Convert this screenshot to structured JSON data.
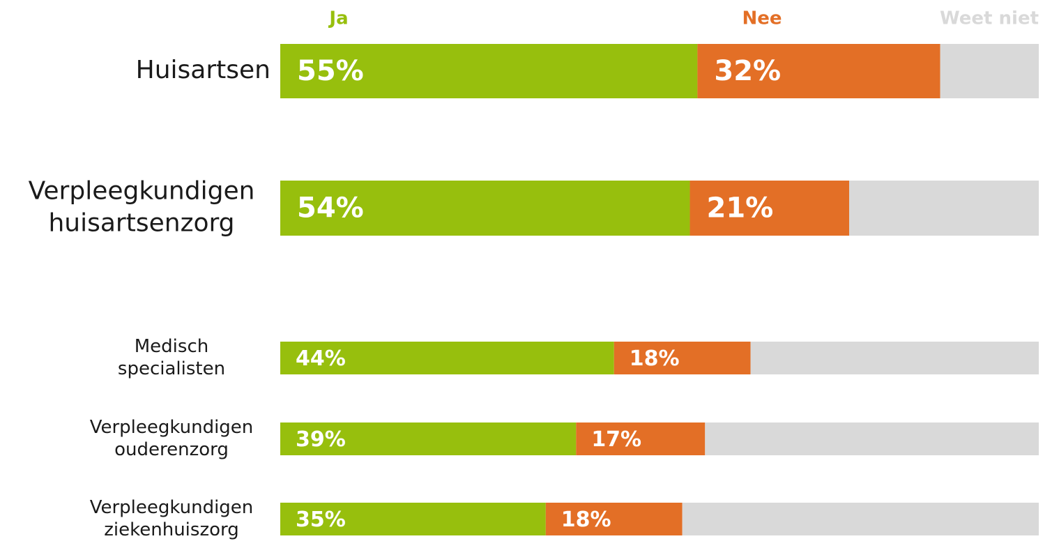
{
  "chart_data": {
    "type": "stacked_barh",
    "categories": [
      [
        "Huisartsen"
      ],
      [
        "Verpleegkundigen",
        "huisartsenzorg"
      ],
      [
        "Medisch",
        "specialisten"
      ],
      [
        "Verpleegkundigen",
        "ouderenzorg"
      ],
      [
        "Verpleegkundigen",
        "ziekenhuiszorg"
      ]
    ],
    "series": [
      {
        "name": "Ja",
        "color": "#97bf0d",
        "values": [
          55,
          54,
          44,
          39,
          35
        ],
        "value_labels": [
          "55%",
          "54%",
          "44%",
          "39%",
          "35%"
        ]
      },
      {
        "name": "Nee",
        "color": "#e36f26",
        "values": [
          32,
          21,
          18,
          17,
          18
        ],
        "value_labels": [
          "32%",
          "21%",
          "18%",
          "17%",
          "18%"
        ]
      },
      {
        "name": "Weet niet",
        "color": "#d9d9d9",
        "values": [
          13,
          25,
          38,
          44,
          47
        ]
      }
    ],
    "xlim": [
      0,
      100
    ]
  }
}
